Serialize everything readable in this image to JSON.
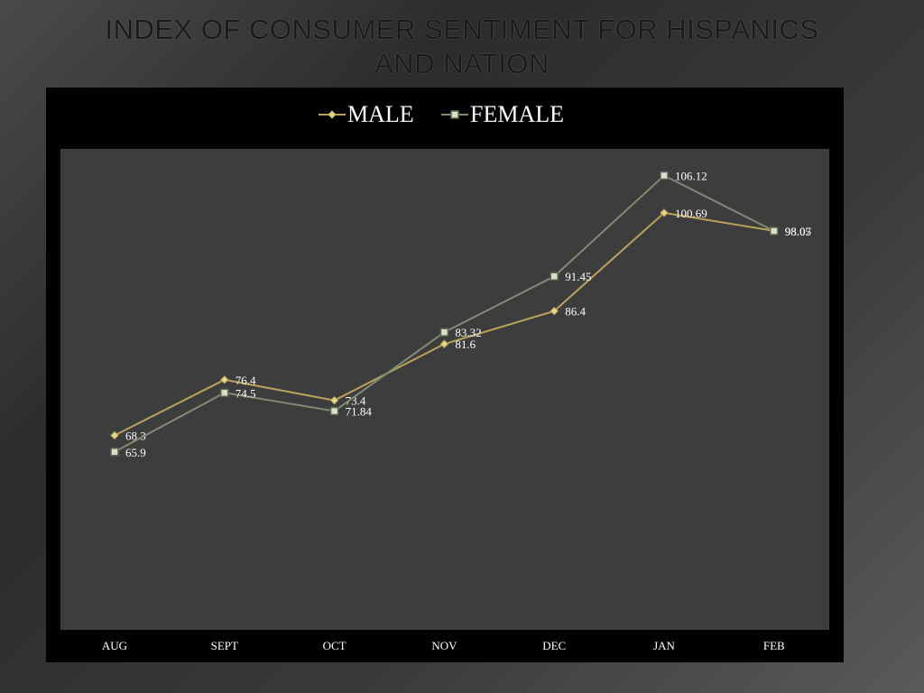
{
  "slide": {
    "title_line1": "INDEX OF CONSUMER SENTIMENT FOR HISPANICS",
    "title_line2": "AND NATION"
  },
  "chart_data": {
    "type": "line",
    "title": "",
    "xlabel": "",
    "ylabel": "",
    "categories": [
      "AUG",
      "SEPT",
      "OCT",
      "NOV",
      "DEC",
      "JAN",
      "FEB"
    ],
    "series": [
      {
        "name": "MALE",
        "color": "#b9a35a",
        "marker": "diamond",
        "values": [
          68.3,
          76.4,
          73.4,
          81.6,
          86.4,
          100.69,
          98.07
        ],
        "labels": [
          "68.3",
          "76.4",
          "73.4",
          "81.6",
          "86.4",
          "100.69",
          "98.07"
        ]
      },
      {
        "name": "FEMALE",
        "color": "#7f8d72",
        "marker": "square",
        "values": [
          65.9,
          74.5,
          71.84,
          83.32,
          91.45,
          106.12,
          98.05
        ],
        "labels": [
          "65.9",
          "74.5",
          "71.84",
          "83.32",
          "91.45",
          "106.12",
          "98.05"
        ]
      }
    ],
    "legend_position": "top",
    "grid": false,
    "plot_background": "#3d3d3d"
  }
}
